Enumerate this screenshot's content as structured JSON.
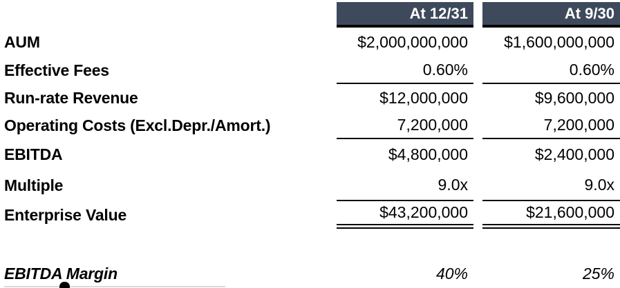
{
  "table": {
    "columns": [
      {
        "header": "At 12/31"
      },
      {
        "header": "At 9/30"
      }
    ],
    "rows": [
      {
        "label": "AUM",
        "values": [
          "$2,000,000,000",
          "$1,600,000,000"
        ]
      },
      {
        "label": "Effective Fees",
        "values": [
          "0.60%",
          "0.60%"
        ]
      },
      {
        "label": "Run-rate Revenue",
        "values": [
          "$12,000,000",
          "$9,600,000"
        ]
      },
      {
        "label": "Operating Costs (Excl.Depr./Amort.)",
        "values": [
          "7,200,000",
          "7,200,000"
        ]
      },
      {
        "label": "EBITDA",
        "values": [
          "$4,800,000",
          "$2,400,000"
        ]
      },
      {
        "label": "Multiple",
        "values": [
          "9.0x",
          "9.0x"
        ]
      },
      {
        "label": "Enterprise Value",
        "values": [
          "$43,200,000",
          "$21,600,000"
        ]
      },
      {
        "label": "EBITDA Margin",
        "values": [
          "40%",
          "25%"
        ]
      }
    ],
    "colors": {
      "header_bg": "#3e4a5c",
      "header_text": "#ffffff",
      "rule": "#000000",
      "body_text": "#000000"
    }
  }
}
